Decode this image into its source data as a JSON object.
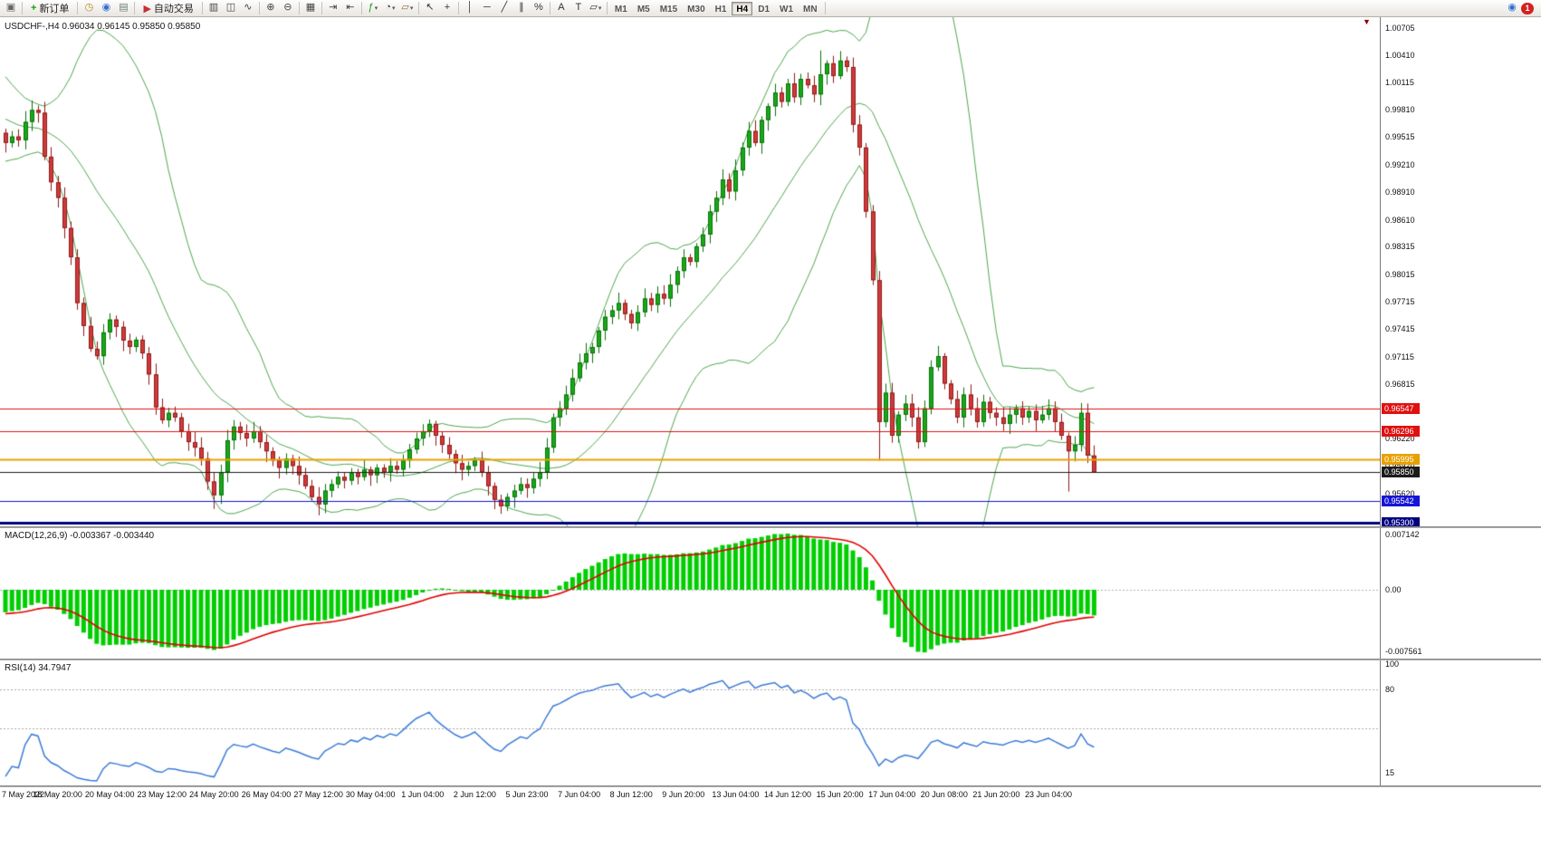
{
  "toolbar": {
    "caret_glyph": "▾",
    "groups": [
      {
        "name": "file",
        "items": [
          {
            "name": "app-window-icon",
            "glyph": "▣",
            "color": "#666666"
          }
        ]
      },
      {
        "name": "order",
        "items": [
          {
            "name": "new-order-button",
            "type": "button",
            "icon_glyph": "+",
            "icon_color": "#12a012",
            "label": "新订单"
          }
        ]
      },
      {
        "name": "panels",
        "items": [
          {
            "name": "market-watch-icon",
            "glyph": "◷",
            "color": "#bb8a1f"
          },
          {
            "name": "data-window-icon",
            "glyph": "◉",
            "color": "#2f6fce"
          },
          {
            "name": "navigator-icon",
            "glyph": "▤",
            "color": "#708070"
          }
        ]
      },
      {
        "name": "autotrade",
        "items": [
          {
            "name": "autotrade-button",
            "type": "button",
            "icon_glyph": "▶",
            "icon_color": "#c53030",
            "label": "自动交易"
          }
        ]
      },
      {
        "name": "chart-types",
        "items": [
          {
            "name": "bar-chart-icon",
            "glyph": "▥",
            "color": "#444444"
          },
          {
            "name": "candlestick-chart-icon",
            "glyph": "◫",
            "color": "#444444"
          },
          {
            "name": "line-chart-icon",
            "glyph": "∿",
            "color": "#444444"
          }
        ]
      },
      {
        "name": "zoom",
        "items": [
          {
            "name": "zoom-in-icon",
            "glyph": "⊕",
            "color": "#444444"
          },
          {
            "name": "zoom-out-icon",
            "glyph": "⊖",
            "color": "#444444"
          }
        ]
      },
      {
        "name": "windows",
        "items": [
          {
            "name": "tile-windows-icon",
            "glyph": "▦",
            "color": "#444444"
          }
        ]
      },
      {
        "name": "scroll",
        "items": [
          {
            "name": "auto-scroll-icon",
            "glyph": "⇥",
            "color": "#444444"
          },
          {
            "name": "chart-shift-icon",
            "glyph": "⇤",
            "color": "#444444"
          }
        ]
      },
      {
        "name": "insert",
        "items": [
          {
            "name": "indicators-icon",
            "glyph": "ƒ",
            "color": "#12a012",
            "dropdown": true
          },
          {
            "name": "periods-icon",
            "glyph": "◔",
            "color": "#444444",
            "dropdown": true
          },
          {
            "name": "templates-icon",
            "glyph": "▱",
            "color": "#8a6d3b",
            "dropdown": true
          }
        ]
      },
      {
        "name": "pointer",
        "items": [
          {
            "name": "cursor-icon",
            "glyph": "↖",
            "color": "#333333"
          },
          {
            "name": "crosshair-icon",
            "glyph": "+",
            "color": "#333333"
          }
        ]
      },
      {
        "name": "draw",
        "items": [
          {
            "name": "vertical-line-icon",
            "glyph": "│",
            "color": "#333333"
          },
          {
            "name": "horizontal-line-icon",
            "glyph": "─",
            "color": "#333333"
          },
          {
            "name": "trendline-icon",
            "glyph": "╱",
            "color": "#333333"
          },
          {
            "name": "channel-icon",
            "glyph": "∥",
            "color": "#333333"
          },
          {
            "name": "fibonacci-icon",
            "glyph": "%",
            "color": "#333333"
          }
        ]
      },
      {
        "name": "text-tools",
        "items": [
          {
            "name": "text-icon",
            "glyph": "A",
            "color": "#333333"
          },
          {
            "name": "label-icon",
            "glyph": "T",
            "color": "#333333"
          },
          {
            "name": "shapes-icon",
            "glyph": "▱",
            "color": "#333333",
            "dropdown": true
          }
        ]
      },
      {
        "name": "timeframes",
        "items": [
          {
            "name": "tf-m1",
            "type": "tf",
            "label": "M1"
          },
          {
            "name": "tf-m5",
            "type": "tf",
            "label": "M5"
          },
          {
            "name": "tf-m15",
            "type": "tf",
            "label": "M15"
          },
          {
            "name": "tf-m30",
            "type": "tf",
            "label": "M30"
          },
          {
            "name": "tf-h1",
            "type": "tf",
            "label": "H1"
          },
          {
            "name": "tf-h4",
            "type": "tf",
            "label": "H4",
            "active": true
          },
          {
            "name": "tf-d1",
            "type": "tf",
            "label": "D1"
          },
          {
            "name": "tf-w1",
            "type": "tf",
            "label": "W1"
          },
          {
            "name": "tf-mn",
            "type": "tf",
            "label": "MN"
          }
        ]
      },
      {
        "name": "right",
        "align": "right",
        "items": [
          {
            "name": "community-icon",
            "glyph": "◉",
            "color": "#2f6fce"
          },
          {
            "name": "alerts-badge",
            "type": "badge",
            "label": "1",
            "color": "#d42020"
          }
        ]
      }
    ]
  },
  "chart": {
    "symbol": "USDCHF-",
    "period": "H4",
    "title": "USDCHF-,H4  0.96034 0.96145 0.95850 0.95850",
    "shift_marker_glyph": "▼",
    "price_scale": [
      "1.00705",
      "1.00410",
      "1.00115",
      "0.99810",
      "0.99515",
      "0.99210",
      "0.98910",
      "0.98610",
      "0.98315",
      "0.98015",
      "0.97715",
      "0.97415",
      "0.97115",
      "0.96815",
      "0.96515",
      "0.96220",
      "0.95920",
      "0.95620",
      "0.95320"
    ],
    "levels": [
      {
        "label": "0.96547",
        "price": 0.96547,
        "color": "#E01010",
        "thickness": 1
      },
      {
        "label": "0.96296",
        "price": 0.96296,
        "color": "#E01010",
        "thickness": 1
      },
      {
        "label": "0.95995",
        "price": 0.95995,
        "color": "#E8A000",
        "thickness": 2
      },
      {
        "label": "0.95850",
        "price": 0.9585,
        "color": "#1c1c1c",
        "thickness": 1
      },
      {
        "label": "0.95542",
        "price": 0.95542,
        "color": "#1515D8",
        "thickness": 1
      },
      {
        "label": "0.95300",
        "price": 0.953,
        "color": "#000080",
        "thickness": 3
      }
    ]
  },
  "chart_data": {
    "type": "candlestick",
    "symbol": "USDCHF",
    "period": "H4",
    "ohlc_last": {
      "open": "0.96034",
      "high": "0.96145",
      "low": "0.95850",
      "close": "0.95850"
    },
    "bollinger": {
      "period": 20,
      "deviation": 2
    },
    "colors": {
      "bull": "#18A818",
      "bull_border": "#0A700A",
      "bear": "#D03A3A",
      "bear_border": "#8F1A1A",
      "bollinger": "#4CA64C",
      "macd_histogram": "#00CE00",
      "macd_signal": "#E00000",
      "rsi": "#3B7BD6"
    },
    "pre_closes": [
      1.01,
      1.0095,
      1.0088,
      1.008,
      1.0072,
      1.0065,
      1.0058,
      1.005,
      1.0042,
      1.0035,
      1.0028,
      1.002,
      1.0012,
      1.0005,
      0.9998,
      0.9992,
      0.9986,
      0.998,
      0.9975,
      0.997,
      0.9966,
      0.9962,
      0.9958,
      0.9955,
      0.9952,
      0.995,
      0.9948,
      0.9947,
      0.9946,
      0.9956
    ],
    "closes": [
      0.9945,
      0.9952,
      0.9948,
      0.9968,
      0.9981,
      0.9978,
      0.993,
      0.9902,
      0.9885,
      0.9852,
      0.982,
      0.977,
      0.9745,
      0.972,
      0.9712,
      0.9738,
      0.9752,
      0.9744,
      0.9729,
      0.9722,
      0.973,
      0.9715,
      0.9692,
      0.9656,
      0.9642,
      0.965,
      0.9645,
      0.963,
      0.9618,
      0.9612,
      0.96,
      0.9575,
      0.956,
      0.9585,
      0.962,
      0.9635,
      0.9628,
      0.9622,
      0.963,
      0.9618,
      0.9608,
      0.9598,
      0.959,
      0.96,
      0.9592,
      0.9582,
      0.957,
      0.9558,
      0.955,
      0.9565,
      0.9572,
      0.958,
      0.9576,
      0.9585,
      0.958,
      0.9588,
      0.9582,
      0.959,
      0.9585,
      0.9592,
      0.9588,
      0.9598,
      0.961,
      0.9622,
      0.963,
      0.9638,
      0.9625,
      0.9615,
      0.9605,
      0.9595,
      0.9588,
      0.9592,
      0.9598,
      0.9585,
      0.957,
      0.9555,
      0.9548,
      0.9558,
      0.9565,
      0.9572,
      0.9568,
      0.9578,
      0.9585,
      0.9612,
      0.9645,
      0.9655,
      0.967,
      0.9688,
      0.9705,
      0.9715,
      0.9722,
      0.974,
      0.9755,
      0.9762,
      0.977,
      0.9758,
      0.9748,
      0.976,
      0.9775,
      0.9768,
      0.978,
      0.9775,
      0.979,
      0.9805,
      0.982,
      0.9815,
      0.9832,
      0.9845,
      0.987,
      0.9885,
      0.9905,
      0.9892,
      0.9915,
      0.994,
      0.9958,
      0.9945,
      0.997,
      0.9985,
      1.0,
      0.999,
      1.001,
      0.9995,
      1.0015,
      1.0008,
      0.9998,
      1.002,
      1.0032,
      1.0018,
      1.0035,
      1.0028,
      0.9965,
      0.994,
      0.987,
      0.9795,
      0.964,
      0.9672,
      0.9625,
      0.9648,
      0.966,
      0.9645,
      0.9618,
      0.9655,
      0.97,
      0.9712,
      0.9682,
      0.9665,
      0.9645,
      0.967,
      0.9655,
      0.964,
      0.9662,
      0.965,
      0.9645,
      0.9638,
      0.9648,
      0.9655,
      0.9645,
      0.9652,
      0.9642,
      0.9648,
      0.9655,
      0.964,
      0.9625,
      0.9608,
      0.9615,
      0.965,
      0.96034,
      0.9585
    ],
    "wick_lows": [
      {
        "i": 32,
        "low": 0.9545
      },
      {
        "i": 48,
        "low": 0.9538
      },
      {
        "i": 76,
        "low": 0.9542
      },
      {
        "i": 134,
        "low": 0.9598
      },
      {
        "i": 163,
        "low": 0.9564
      }
    ],
    "wick_highs": [
      {
        "i": 125,
        "high": 1.0046
      },
      {
        "i": 128,
        "high": 1.0042
      },
      {
        "i": 4,
        "high": 0.999
      }
    ],
    "indicators": {
      "macd": {
        "label": "MACD(12,26,9) -0.003367 -0.003440",
        "fast": 12,
        "slow": 26,
        "signal": 9,
        "scale": [
          "0.007142",
          "0.00",
          "-0.007561"
        ]
      },
      "rsi": {
        "label": "RSI(14) 34.7947",
        "period": 14,
        "scale": [
          "100",
          "80",
          "15"
        ],
        "levels": [
          80,
          50
        ]
      }
    },
    "time_labels": [
      "7 May 2022",
      "18 May 20:00",
      "20 May 04:00",
      "23 May 12:00",
      "24 May 20:00",
      "26 May 04:00",
      "27 May 12:00",
      "30 May 04:00",
      "1 Jun 04:00",
      "2 Jun 12:00",
      "5 Jun 23:00",
      "7 Jun 04:00",
      "8 Jun 12:00",
      "9 Jun 20:00",
      "13 Jun 04:00",
      "14 Jun 12:00",
      "15 Jun 20:00",
      "17 Jun 04:00",
      "20 Jun 08:00",
      "21 Jun 20:00",
      "23 Jun 04:00"
    ]
  }
}
